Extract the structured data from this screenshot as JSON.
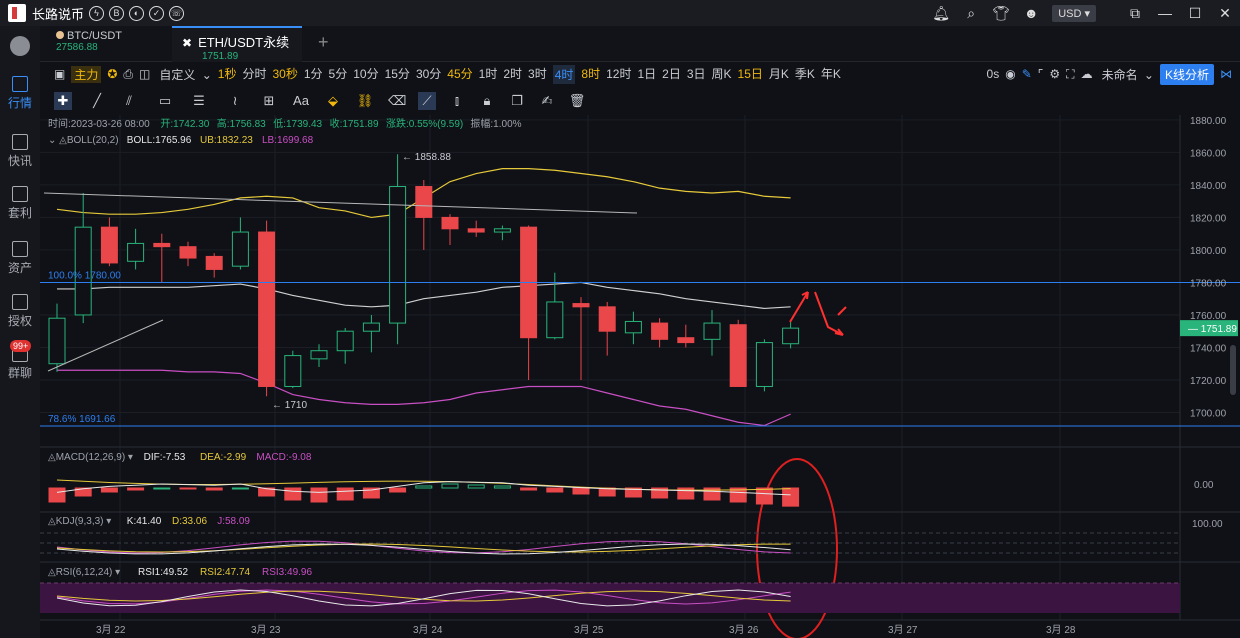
{
  "app": {
    "title": "长路说币",
    "currency": "USD"
  },
  "sidebar": [
    {
      "label": "行情",
      "active": true
    },
    {
      "label": "快讯"
    },
    {
      "label": "套利"
    },
    {
      "label": "资产"
    },
    {
      "label": "授权"
    },
    {
      "label": "群聊",
      "badge": "99+"
    }
  ],
  "tabs": [
    {
      "symbol": "BTC/USDT",
      "price": "27586.88"
    },
    {
      "symbol": "ETH/USDT永续",
      "price": "1751.89",
      "active": true
    }
  ],
  "toolbar": {
    "main_label": "主力",
    "custom_label": "自定义",
    "timeframes": [
      "1秒",
      "分时",
      "30秒",
      "1分",
      "5分",
      "10分",
      "15分",
      "30分",
      "45分",
      "1时",
      "2时",
      "3时",
      "4时",
      "8时",
      "12时",
      "1日",
      "2日",
      "3日",
      "周K",
      "15日",
      "月K",
      "季K",
      "年K"
    ],
    "highlighted": [
      "1秒",
      "30秒",
      "45分",
      "8时",
      "15日"
    ],
    "selected": "4时",
    "zero_s": "0s",
    "unnamed": "未命名",
    "kline_btn": "K线分析"
  },
  "ohlc_info": {
    "time": "时间:2023-03-26 08:00",
    "open": "开:1742.30",
    "high": "高:1756.83",
    "low": "低:1739.43",
    "close": "收:1751.89",
    "change": "涨跌:0.55%(9.59)",
    "amp": "振幅:1.00%"
  },
  "boll": {
    "title": "BOLL(20,2)",
    "boll": "BOLL:1765.96",
    "ub": "UB:1832.23",
    "lb": "LB:1699.68"
  },
  "macd": {
    "title": "MACD(12,26,9)",
    "dif": "DIF:-7.53",
    "dea": "DEA:-2.99",
    "macd": "MACD:-9.08"
  },
  "kdj": {
    "title": "KDJ(9,3,3)",
    "k": "K:41.40",
    "d": "D:33.06",
    "j": "J:58.09"
  },
  "rsi": {
    "title": "RSI(6,12,24)",
    "r1": "RSI1:49.52",
    "r2": "RSI2:47.74",
    "r3": "RSI3:49.96"
  },
  "annotations": {
    "high": "1858.88",
    "low": "1710",
    "fib100": "100.0% 1780.00",
    "fib786": "78.6% 1691.66",
    "price_tag": "1751.89",
    "macd_zero": "0.00",
    "kdj_100": "100.00"
  },
  "colors": {
    "up": "#28b47a",
    "down": "#e9474a",
    "ub": "#e6c93a",
    "lb": "#c94fc4",
    "mid": "#d0d0d0",
    "fib": "#2d7ff0"
  },
  "chart_data": {
    "type": "candlestick",
    "symbol": "ETH/USDT永续",
    "interval": "4时",
    "yticks": [
      1880,
      1860,
      1840,
      1820,
      1800,
      1780,
      1760,
      1740,
      1720,
      1700
    ],
    "ylim": [
      1680,
      1883
    ],
    "xticks": [
      "3月 22",
      "3月 23",
      "3月 24",
      "3月 25",
      "3月 26",
      "3月 27",
      "3月 28"
    ],
    "candles": [
      {
        "o": 1730,
        "h": 1767,
        "l": 1725,
        "c": 1758
      },
      {
        "o": 1760,
        "h": 1835,
        "l": 1755,
        "c": 1814
      },
      {
        "o": 1814,
        "h": 1820,
        "l": 1790,
        "c": 1792
      },
      {
        "o": 1793,
        "h": 1813,
        "l": 1788,
        "c": 1804
      },
      {
        "o": 1804,
        "h": 1810,
        "l": 1780,
        "c": 1802
      },
      {
        "o": 1802,
        "h": 1805,
        "l": 1790,
        "c": 1795
      },
      {
        "o": 1796,
        "h": 1798,
        "l": 1783,
        "c": 1788
      },
      {
        "o": 1790,
        "h": 1820,
        "l": 1788,
        "c": 1811
      },
      {
        "o": 1811,
        "h": 1818,
        "l": 1710,
        "c": 1716
      },
      {
        "o": 1716,
        "h": 1738,
        "l": 1715,
        "c": 1735
      },
      {
        "o": 1733,
        "h": 1742,
        "l": 1728,
        "c": 1738
      },
      {
        "o": 1738,
        "h": 1752,
        "l": 1730,
        "c": 1750
      },
      {
        "o": 1750,
        "h": 1760,
        "l": 1737,
        "c": 1755
      },
      {
        "o": 1755,
        "h": 1858.88,
        "l": 1742,
        "c": 1839
      },
      {
        "o": 1839,
        "h": 1843,
        "l": 1800,
        "c": 1820
      },
      {
        "o": 1820,
        "h": 1822,
        "l": 1803,
        "c": 1813
      },
      {
        "o": 1813,
        "h": 1818,
        "l": 1808,
        "c": 1811
      },
      {
        "o": 1811,
        "h": 1815,
        "l": 1806,
        "c": 1813
      },
      {
        "o": 1814,
        "h": 1815,
        "l": 1720,
        "c": 1746
      },
      {
        "o": 1746,
        "h": 1786,
        "l": 1745,
        "c": 1768
      },
      {
        "o": 1767,
        "h": 1771,
        "l": 1720,
        "c": 1765
      },
      {
        "o": 1765,
        "h": 1768,
        "l": 1735,
        "c": 1750
      },
      {
        "o": 1749,
        "h": 1762,
        "l": 1742,
        "c": 1756
      },
      {
        "o": 1755,
        "h": 1758,
        "l": 1740,
        "c": 1745
      },
      {
        "o": 1746,
        "h": 1754,
        "l": 1740,
        "c": 1743
      },
      {
        "o": 1745,
        "h": 1763,
        "l": 1735,
        "c": 1755
      },
      {
        "o": 1754,
        "h": 1757,
        "l": 1716,
        "c": 1716
      },
      {
        "o": 1716,
        "h": 1745,
        "l": 1713,
        "c": 1743
      },
      {
        "o": 1742.3,
        "h": 1756.83,
        "l": 1739.43,
        "c": 1751.89
      }
    ],
    "boll_ub": [
      1825,
      1823,
      1822,
      1822,
      1823,
      1825,
      1828,
      1832,
      1833,
      1832,
      1826,
      1824,
      1820,
      1822,
      1832,
      1842,
      1847,
      1850,
      1850,
      1849,
      1847,
      1845,
      1842,
      1838,
      1836,
      1835,
      1836,
      1833,
      1832
    ],
    "boll_mid": [
      1776,
      1776,
      1777,
      1777,
      1777,
      1777,
      1778,
      1779,
      1776,
      1772,
      1769,
      1766,
      1765,
      1766,
      1770,
      1772,
      1774,
      1777,
      1778,
      1779,
      1780,
      1777,
      1775,
      1773,
      1770,
      1768,
      1766,
      1764,
      1765
    ],
    "boll_lb": [
      1726,
      1726,
      1726,
      1726,
      1726,
      1725,
      1725,
      1724,
      1718,
      1711,
      1708,
      1706,
      1705,
      1705,
      1706,
      1708,
      1712,
      1714,
      1716,
      1716,
      1716,
      1712,
      1708,
      1704,
      1702,
      1698,
      1694,
      1692,
      1699
    ],
    "macd_hist": [
      -7,
      -4,
      -2,
      -1,
      0,
      -0.5,
      -1,
      0,
      -4,
      -6,
      -7,
      -6,
      -5,
      -2,
      1,
      2,
      1.5,
      1,
      -1,
      -2,
      -3,
      -4,
      -4.5,
      -5,
      -5.5,
      -6,
      -7,
      -8,
      -9.08
    ]
  }
}
